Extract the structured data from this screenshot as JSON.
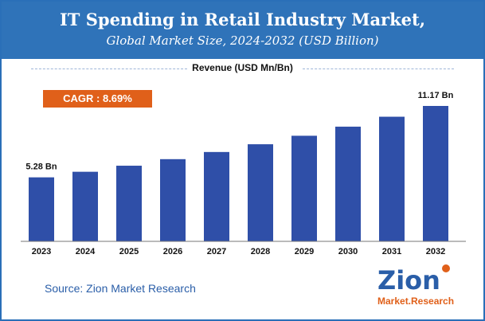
{
  "header": {
    "title": "IT Spending in Retail Industry Market,",
    "subtitle": "Global Market Size, 2024-2032 (USD Billion)"
  },
  "legend": {
    "label": "Revenue (USD Mn/Bn)"
  },
  "cagr": {
    "label": "CAGR : 8.69%"
  },
  "source": {
    "text": "Source: Zion Market Research"
  },
  "logo": {
    "brand": "Zion",
    "sub": "Market.Research"
  },
  "colors": {
    "header": "#2f73b9",
    "bar": "#2f4fa8",
    "cagr": "#e0601a",
    "source": "#2a5ea8"
  },
  "chart_data": {
    "type": "bar",
    "categories": [
      "2023",
      "2024",
      "2025",
      "2026",
      "2027",
      "2028",
      "2029",
      "2030",
      "2031",
      "2032"
    ],
    "values": [
      5.28,
      5.74,
      6.24,
      6.78,
      7.37,
      8.01,
      8.71,
      9.46,
      10.28,
      11.17
    ],
    "data_labels": {
      "first": "5.28 Bn",
      "last": "11.17 Bn"
    },
    "ylim": [
      0,
      11.17
    ],
    "grid": false
  }
}
